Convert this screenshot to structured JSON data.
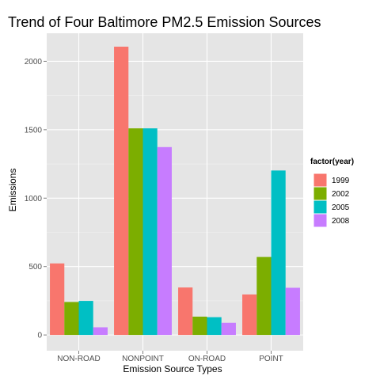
{
  "chart_data": {
    "type": "bar",
    "title": "Trend of Four Baltimore PM2.5 Emission Sources",
    "xlabel": "Emission Source Types",
    "ylabel": "Emissions",
    "categories": [
      "NON-ROAD",
      "NONPOINT",
      "ON-ROAD",
      "POINT"
    ],
    "series": [
      {
        "name": "1999",
        "color": "#f8766d",
        "values": [
          523,
          2107,
          347,
          296
        ]
      },
      {
        "name": "2002",
        "color": "#7cae00",
        "values": [
          241,
          1510,
          134,
          570
        ]
      },
      {
        "name": "2005",
        "color": "#00bfc4",
        "values": [
          249,
          1510,
          130,
          1202
        ]
      },
      {
        "name": "2008",
        "color": "#c77cff",
        "values": [
          56,
          1373,
          89,
          345
        ]
      }
    ],
    "ylim": [
      -115,
      2205
    ],
    "yticks": [
      0,
      500,
      1000,
      1500,
      2000
    ],
    "grid": true,
    "legend": {
      "title": "factor(year)",
      "placement": "right"
    },
    "panel_background": "#e5e5e5"
  }
}
